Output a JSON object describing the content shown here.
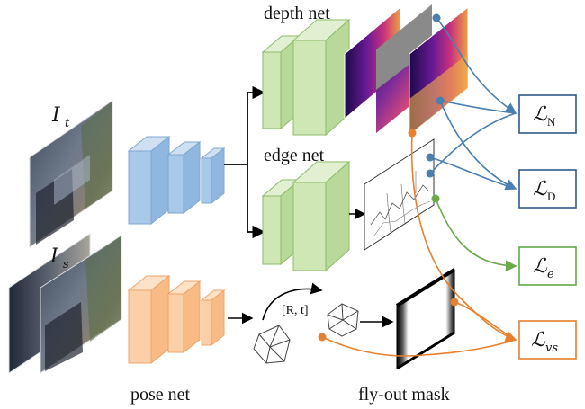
{
  "labels": {
    "depth_net": "depth net",
    "edge_net": "edge net",
    "pose_net": "pose net",
    "flyout_mask": "fly-out mask",
    "rt": "[R, t]",
    "input_target": "I",
    "input_target_sub": "t",
    "input_source": "I",
    "input_source_sub": "s"
  },
  "losses": [
    {
      "id": "normal",
      "symbol": "ℒ",
      "sub": "N",
      "color": "#2e5a87"
    },
    {
      "id": "depth",
      "symbol": "ℒ",
      "sub": "D",
      "color": "#2e5a87"
    },
    {
      "id": "edge",
      "symbol": "ℒ",
      "sub": "e",
      "color": "#5fa84a"
    },
    {
      "id": "view_synthesis",
      "symbol": "ℒ",
      "sub": "vs",
      "color": "#e87e2e"
    }
  ],
  "colors": {
    "blue_arrow": "#4a7fb0",
    "green_arrow": "#6aaa4b",
    "orange_arrow": "#e8802e",
    "encoder_blue": "#a9c9ea",
    "decoder_green": "#cfe6b5",
    "pose_orange": "#fbcfa8"
  }
}
